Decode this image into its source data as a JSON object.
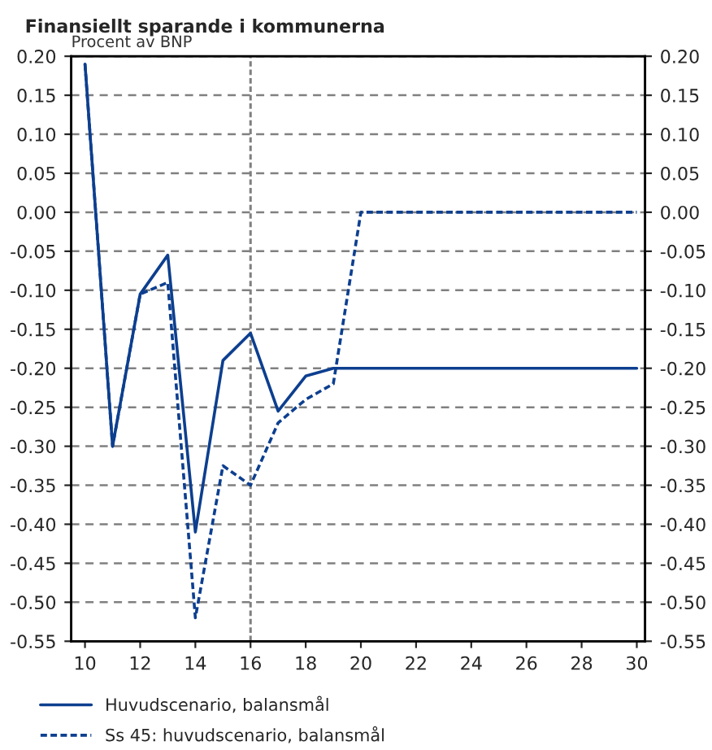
{
  "chart_data": {
    "type": "line",
    "title": "Finansiellt sparande i kommunerna",
    "ylabel": "Procent av BNP",
    "x": [
      10,
      11,
      12,
      13,
      14,
      15,
      16,
      17,
      18,
      19,
      20,
      21,
      22,
      23,
      24,
      25,
      26,
      27,
      28,
      29,
      30
    ],
    "series": [
      {
        "name": "Huvudscenario, balansmål",
        "color": "#0d3f8f",
        "line_style": "solid",
        "values": [
          0.19,
          -0.3,
          -0.105,
          -0.055,
          -0.41,
          -0.19,
          -0.155,
          -0.255,
          -0.21,
          -0.2,
          -0.2,
          -0.2,
          -0.2,
          -0.2,
          -0.2,
          -0.2,
          -0.2,
          -0.2,
          -0.2,
          -0.2,
          -0.2
        ]
      },
      {
        "name": "Ss 45: huvudscenario, balansmål",
        "color": "#0d3f8f",
        "line_style": "dashed",
        "values": [
          0.19,
          -0.3,
          -0.105,
          -0.09,
          -0.52,
          -0.325,
          -0.35,
          -0.27,
          -0.24,
          -0.22,
          0.0,
          0.0,
          0.0,
          0.0,
          0.0,
          0.0,
          0.0,
          0.0,
          0.0,
          0.0,
          0.0
        ]
      }
    ],
    "xlim": [
      9.5,
      30.3
    ],
    "xticks": [
      10,
      12,
      14,
      16,
      18,
      20,
      22,
      24,
      26,
      28,
      30
    ],
    "ylim": [
      -0.55,
      0.2
    ],
    "yticks": [
      {
        "value": 0.2,
        "label": "0.20"
      },
      {
        "value": 0.15,
        "label": "0.15"
      },
      {
        "value": 0.1,
        "label": "0.10"
      },
      {
        "value": 0.05,
        "label": "0.05"
      },
      {
        "value": 0.0,
        "label": "0.00"
      },
      {
        "value": -0.05,
        "label": "-0.05"
      },
      {
        "value": -0.1,
        "label": "-0.10"
      },
      {
        "value": -0.15,
        "label": "-0.15"
      },
      {
        "value": -0.2,
        "label": "-0.20"
      },
      {
        "value": -0.25,
        "label": "-0.25"
      },
      {
        "value": -0.3,
        "label": "-0.30"
      },
      {
        "value": -0.35,
        "label": "-0.35"
      },
      {
        "value": -0.4,
        "label": "-0.40"
      },
      {
        "value": -0.45,
        "label": "-0.45"
      },
      {
        "value": -0.5,
        "label": "-0.50"
      },
      {
        "value": -0.55,
        "label": "-0.55"
      }
    ],
    "y2lim": [
      -0.55,
      0.2
    ],
    "y2ticks": [
      {
        "value": 0.2,
        "label": "0.20"
      },
      {
        "value": 0.15,
        "label": "0.15"
      },
      {
        "value": 0.1,
        "label": "0.10"
      },
      {
        "value": 0.05,
        "label": "0.05"
      },
      {
        "value": 0.0,
        "label": "0.00"
      },
      {
        "value": -0.05,
        "label": "-0.05"
      },
      {
        "value": -0.1,
        "label": "-0.10"
      },
      {
        "value": -0.15,
        "label": "-0.15"
      },
      {
        "value": -0.2,
        "label": "-0.20"
      },
      {
        "value": -0.25,
        "label": "-0.25"
      },
      {
        "value": -0.3,
        "label": "-0.30"
      },
      {
        "value": -0.35,
        "label": "-0.35"
      },
      {
        "value": -0.4,
        "label": "-0.40"
      },
      {
        "value": -0.45,
        "label": "-0.45"
      },
      {
        "value": -0.5,
        "label": "-0.50"
      },
      {
        "value": -0.55,
        "label": "-0.55"
      }
    ],
    "ref_lines": [
      {
        "axis": "x",
        "value": 16,
        "color": "#808080",
        "line_style": "dashed"
      }
    ],
    "grid": "y",
    "legend": "bottom",
    "marker": "none"
  }
}
